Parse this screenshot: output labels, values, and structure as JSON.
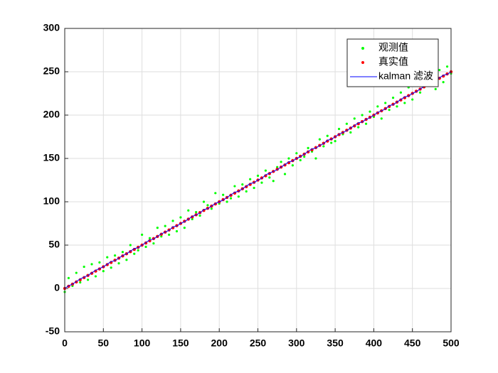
{
  "chart_data": {
    "type": "line",
    "x": [
      0,
      5,
      10,
      15,
      20,
      25,
      30,
      35,
      40,
      45,
      50,
      55,
      60,
      65,
      70,
      75,
      80,
      85,
      90,
      95,
      100,
      105,
      110,
      115,
      120,
      125,
      130,
      135,
      140,
      145,
      150,
      155,
      160,
      165,
      170,
      175,
      180,
      185,
      190,
      195,
      200,
      205,
      210,
      215,
      220,
      225,
      230,
      235,
      240,
      245,
      250,
      255,
      260,
      265,
      270,
      275,
      280,
      285,
      290,
      295,
      300,
      305,
      310,
      315,
      320,
      325,
      330,
      335,
      340,
      345,
      350,
      355,
      360,
      365,
      370,
      375,
      380,
      385,
      390,
      395,
      400,
      405,
      410,
      415,
      420,
      425,
      430,
      435,
      440,
      445,
      450,
      455,
      460,
      465,
      470,
      475,
      480,
      485,
      490,
      495,
      500
    ],
    "series": [
      {
        "name": "观测值",
        "color": "#00ff00",
        "style": "markers",
        "values": [
          -4,
          12,
          3,
          18,
          7,
          25,
          10,
          28,
          14,
          30,
          20,
          36,
          24,
          38,
          29,
          42,
          33,
          50,
          40,
          44,
          62,
          48,
          58,
          52,
          70,
          60,
          72,
          62,
          78,
          66,
          82,
          70,
          90,
          80,
          88,
          84,
          100,
          96,
          92,
          110,
          98,
          108,
          100,
          104,
          118,
          106,
          120,
          112,
          126,
          116,
          130,
          122,
          136,
          128,
          124,
          140,
          146,
          132,
          150,
          142,
          156,
          148,
          152,
          162,
          158,
          150,
          172,
          164,
          176,
          168,
          170,
          184,
          178,
          190,
          180,
          196,
          186,
          200,
          190,
          204,
          198,
          210,
          196,
          214,
          206,
          220,
          210,
          226,
          214,
          232,
          218,
          236,
          226,
          240,
          234,
          246,
          230,
          252,
          238,
          256,
          248
        ]
      },
      {
        "name": "真实值",
        "color": "#ff0000",
        "style": "markers",
        "values": [
          0,
          2.5,
          5,
          7.5,
          10,
          12.5,
          15,
          17.5,
          20,
          22.5,
          25,
          27.5,
          30,
          32.5,
          35,
          37.5,
          40,
          42.5,
          45,
          47.5,
          50,
          52.5,
          55,
          57.5,
          60,
          62.5,
          65,
          67.5,
          70,
          72.5,
          75,
          77.5,
          80,
          82.5,
          85,
          87.5,
          90,
          92.5,
          95,
          97.5,
          100,
          102.5,
          105,
          107.5,
          110,
          112.5,
          115,
          117.5,
          120,
          122.5,
          125,
          127.5,
          130,
          132.5,
          135,
          137.5,
          140,
          142.5,
          145,
          147.5,
          150,
          152.5,
          155,
          157.5,
          160,
          162.5,
          165,
          167.5,
          170,
          172.5,
          175,
          177.5,
          180,
          182.5,
          185,
          187.5,
          190,
          192.5,
          195,
          197.5,
          200,
          202.5,
          205,
          207.5,
          210,
          212.5,
          215,
          217.5,
          220,
          222.5,
          225,
          227.5,
          230,
          232.5,
          235,
          237.5,
          240,
          242.5,
          245,
          247.5,
          250
        ]
      },
      {
        "name": "kalman 滤波",
        "color": "#0000ff",
        "style": "line",
        "values": [
          0,
          3,
          5,
          8,
          11,
          13,
          15,
          18,
          21,
          23,
          25,
          28,
          31,
          32,
          35,
          38,
          40,
          43,
          46,
          47,
          50,
          53,
          56,
          57,
          60,
          63,
          65,
          67,
          71,
          72,
          75,
          77,
          80,
          83,
          85,
          87,
          91,
          92,
          95,
          98,
          100,
          102,
          105,
          108,
          111,
          112,
          115,
          118,
          121,
          122,
          125,
          127,
          131,
          133,
          135,
          137,
          140,
          143,
          146,
          147,
          150,
          152,
          155,
          158,
          161,
          162,
          165,
          167,
          171,
          172,
          175,
          178,
          180,
          182,
          185,
          188,
          191,
          192,
          195,
          197,
          200,
          203,
          205,
          207,
          211,
          212,
          215,
          218,
          221,
          222,
          225,
          227,
          230,
          233,
          235,
          237,
          240,
          243,
          246,
          247,
          250
        ]
      }
    ],
    "xlim": [
      0,
      500
    ],
    "xticks": [
      0,
      50,
      100,
      150,
      200,
      250,
      300,
      350,
      400,
      450,
      500
    ],
    "ylim": [
      -50,
      300
    ],
    "yticks": [
      -50,
      0,
      50,
      100,
      150,
      200,
      250,
      300
    ],
    "grid": true,
    "legend": "northeast"
  }
}
